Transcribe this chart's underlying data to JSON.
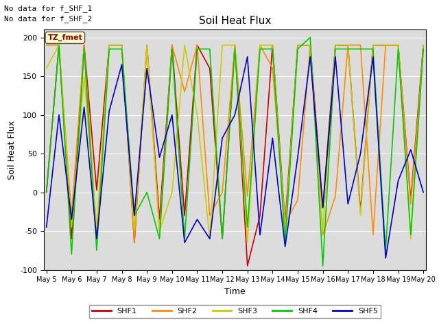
{
  "title": "Soil Heat Flux",
  "ylabel": "Soil Heat Flux",
  "xlabel": "Time",
  "annotation_line1": "No data for f_SHF_1",
  "annotation_line2": "No data for f_SHF_2",
  "box_label": "TZ_fmet",
  "ylim": [
    -100,
    210
  ],
  "axes_bg": "#dcdcdc",
  "fig_bg": "#ffffff",
  "series": {
    "SHF1": {
      "color": "#cc0000",
      "x": [
        5.0,
        5.5,
        6.0,
        6.5,
        7.0,
        7.5,
        8.0,
        8.5,
        9.0,
        9.5,
        10.0,
        10.5,
        11.0,
        11.5,
        12.0,
        12.5,
        13.0,
        13.5,
        14.0,
        14.5,
        15.0,
        15.5,
        16.0,
        16.5,
        17.0,
        17.5,
        18.0,
        18.5,
        19.0,
        19.5,
        20.0
      ],
      "y": [
        0,
        190,
        -60,
        190,
        3,
        190,
        190,
        -65,
        190,
        -35,
        190,
        -30,
        190,
        160,
        -60,
        190,
        -95,
        -30,
        190,
        -40,
        190,
        190,
        -20,
        190,
        190,
        -25,
        190,
        190,
        190,
        -10,
        190
      ]
    },
    "SHF2": {
      "color": "#ff8c00",
      "x": [
        5.0,
        5.5,
        6.0,
        6.5,
        7.0,
        7.5,
        8.0,
        8.5,
        9.0,
        9.5,
        10.0,
        10.5,
        11.0,
        11.5,
        12.0,
        12.5,
        13.0,
        13.5,
        14.0,
        14.5,
        15.0,
        15.5,
        16.0,
        16.5,
        17.0,
        17.5,
        18.0,
        18.5,
        19.0,
        19.5,
        20.0
      ],
      "y": [
        190,
        190,
        -30,
        190,
        -55,
        190,
        190,
        -65,
        190,
        -50,
        190,
        130,
        190,
        -30,
        0,
        190,
        -5,
        190,
        160,
        -40,
        -10,
        190,
        -55,
        -5,
        190,
        190,
        -55,
        190,
        190,
        -15,
        185
      ]
    },
    "SHF3": {
      "color": "#cccc00",
      "x": [
        5.0,
        5.5,
        6.0,
        6.5,
        7.0,
        7.5,
        8.0,
        8.5,
        9.0,
        9.5,
        10.0,
        10.5,
        11.0,
        11.5,
        12.0,
        12.5,
        13.0,
        13.5,
        14.0,
        14.5,
        15.0,
        15.5,
        16.0,
        16.5,
        17.0,
        17.5,
        18.0,
        18.5,
        19.0,
        19.5,
        20.0
      ],
      "y": [
        160,
        190,
        -45,
        150,
        -45,
        190,
        190,
        -50,
        190,
        -50,
        0,
        190,
        100,
        -60,
        190,
        190,
        -65,
        190,
        190,
        -50,
        190,
        190,
        -50,
        190,
        190,
        -30,
        190,
        190,
        190,
        -60,
        190
      ]
    },
    "SHF4": {
      "color": "#00cc00",
      "x": [
        5.0,
        5.5,
        6.0,
        6.5,
        7.0,
        7.5,
        8.0,
        8.5,
        9.0,
        9.5,
        10.0,
        10.5,
        11.0,
        11.5,
        12.0,
        12.5,
        13.0,
        13.5,
        14.0,
        14.5,
        15.0,
        15.5,
        16.0,
        16.5,
        17.0,
        17.5,
        18.0,
        18.5,
        19.0,
        19.5,
        20.0
      ],
      "y": [
        0,
        190,
        -80,
        185,
        -75,
        185,
        185,
        -30,
        0,
        -60,
        185,
        -60,
        185,
        185,
        -60,
        185,
        -45,
        185,
        185,
        -65,
        185,
        200,
        -95,
        185,
        185,
        185,
        185,
        -75,
        185,
        -55,
        185
      ]
    },
    "SHF5": {
      "color": "#0000cc",
      "x": [
        5.0,
        5.5,
        6.0,
        6.5,
        7.0,
        7.5,
        8.0,
        8.5,
        9.0,
        9.5,
        10.0,
        10.5,
        11.0,
        11.5,
        12.0,
        12.5,
        13.0,
        13.5,
        14.0,
        14.5,
        15.0,
        15.5,
        16.0,
        16.5,
        17.0,
        17.5,
        18.0,
        18.5,
        19.0,
        19.5,
        20.0
      ],
      "y": [
        -45,
        100,
        -35,
        110,
        -60,
        105,
        165,
        -30,
        160,
        45,
        100,
        -65,
        -35,
        -60,
        70,
        100,
        175,
        -55,
        70,
        -70,
        45,
        175,
        -20,
        175,
        -15,
        50,
        175,
        -85,
        15,
        55,
        0
      ]
    }
  },
  "xtick_labels": [
    "May 5",
    "May 6",
    "May 7",
    "May 8",
    "May 9",
    "May 10",
    "May 11",
    "May 12",
    "May 13",
    "May 14",
    "May 15",
    "May 16",
    "May 17",
    "May 18",
    "May 19",
    "May 20"
  ],
  "xtick_positions": [
    5,
    6,
    7,
    8,
    9,
    10,
    11,
    12,
    13,
    14,
    15,
    16,
    17,
    18,
    19,
    20
  ],
  "ytick_labels": [
    "-100",
    "-50",
    "0",
    "50",
    "100",
    "150",
    "200"
  ],
  "ytick_values": [
    -100,
    -50,
    0,
    50,
    100,
    150,
    200
  ],
  "linewidth": 1.2
}
